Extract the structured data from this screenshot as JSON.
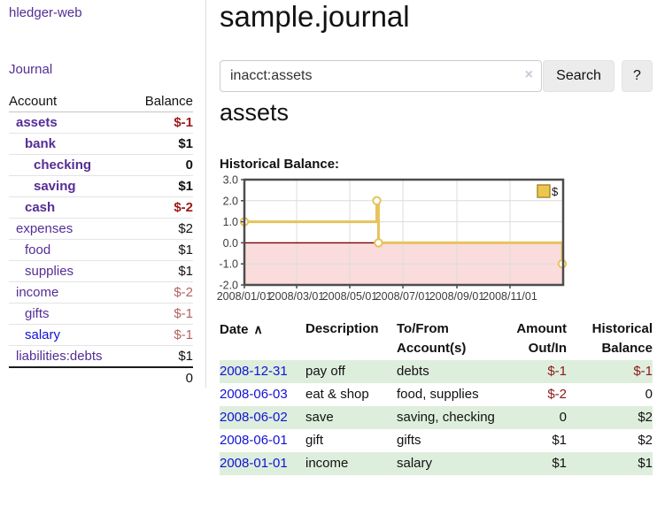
{
  "colors": {
    "link-purple": "#542d96",
    "link-blue": "#1113d2",
    "neg-dark": "#9d1717",
    "neg-muted": "#b4625f",
    "neg-table": "#8e1717",
    "row-green": "#deeedd",
    "chart-gold": "#e7c35c",
    "legend-gold": "#ecc74e",
    "legend-border": "#ab8b2d",
    "zero-line": "#7a0000",
    "chart-pink": "#fadcdc",
    "grid": "#dcdcdc",
    "chart-border": "#4d4d4d",
    "btn-bg": "#ececec",
    "clear-x": "#cdc5de",
    "axis-text": "#3c3c3c"
  },
  "sidebar": {
    "brand": "hledger-web",
    "nav": {
      "journal": "Journal"
    },
    "accounts": {
      "header": {
        "account": "Account",
        "balance": "Balance"
      },
      "rows": [
        {
          "name": "assets",
          "balance": "$-1",
          "indent": 1,
          "bold": true,
          "name_color": "purple",
          "balance_color": "darkred"
        },
        {
          "name": "bank",
          "balance": "$1",
          "indent": 2,
          "bold": true,
          "name_color": "purple",
          "balance_color": "black"
        },
        {
          "name": "checking",
          "balance": "0",
          "indent": 3,
          "bold": true,
          "name_color": "purple",
          "balance_color": "black"
        },
        {
          "name": "saving",
          "balance": "$1",
          "indent": 3,
          "bold": true,
          "name_color": "purple",
          "balance_color": "black"
        },
        {
          "name": "cash",
          "balance": "$-2",
          "indent": 2,
          "bold": true,
          "name_color": "purple",
          "balance_color": "darkred"
        },
        {
          "name": "expenses",
          "balance": "$2",
          "indent": 1,
          "bold": false,
          "name_color": "purple",
          "balance_color": "black"
        },
        {
          "name": "food",
          "balance": "$1",
          "indent": 2,
          "bold": false,
          "name_color": "purple",
          "balance_color": "black"
        },
        {
          "name": "supplies",
          "balance": "$1",
          "indent": 2,
          "bold": false,
          "name_color": "purple",
          "balance_color": "black"
        },
        {
          "name": "income",
          "balance": "$-2",
          "indent": 1,
          "bold": false,
          "name_color": "purple",
          "balance_color": "muted"
        },
        {
          "name": "gifts",
          "balance": "$-1",
          "indent": 2,
          "bold": false,
          "name_color": "purple",
          "balance_color": "muted"
        },
        {
          "name": "salary",
          "balance": "$-1",
          "indent": 2,
          "bold": false,
          "name_color": "blue",
          "balance_color": "muted"
        },
        {
          "name": "liabilities:debts",
          "balance": "$1",
          "indent": 1,
          "bold": false,
          "name_color": "purple",
          "balance_color": "black"
        }
      ],
      "total": "0"
    }
  },
  "main": {
    "title": "sample.journal",
    "search": {
      "value": "inacct:assets",
      "clear_icon": "×",
      "button": "Search",
      "help_button": "?"
    },
    "account_heading": "assets",
    "chart_label": "Historical Balance:"
  },
  "chart_data": {
    "type": "line",
    "title": "Historical Balance",
    "step": true,
    "legend": [
      {
        "label": "$"
      }
    ],
    "legend_position": "top-right",
    "grid": true,
    "negative_region_shaded": true,
    "xlim_days": [
      0,
      366
    ],
    "ylim": [
      -2,
      3
    ],
    "y_ticks": [
      {
        "label": "3.0",
        "value": 3
      },
      {
        "label": "2.0",
        "value": 2
      },
      {
        "label": "1.0",
        "value": 1
      },
      {
        "label": "0.0",
        "value": 0
      },
      {
        "label": "-1.0",
        "value": -1
      },
      {
        "label": "-2.0",
        "value": -2
      }
    ],
    "x_ticks": [
      {
        "label": "2008/01/01",
        "day": 0
      },
      {
        "label": "2008/03/01",
        "day": 60
      },
      {
        "label": "2008/05/01",
        "day": 121
      },
      {
        "label": "2008/07/01",
        "day": 182
      },
      {
        "label": "2008/09/01",
        "day": 244
      },
      {
        "label": "2008/11/01",
        "day": 305
      }
    ],
    "series": [
      {
        "name": "$",
        "points": [
          {
            "date": "2008-01-01",
            "day": 0,
            "value": 1
          },
          {
            "date": "2008-06-01",
            "day": 152,
            "value": 2
          },
          {
            "date": "2008-06-03",
            "day": 154,
            "value": 0
          },
          {
            "date": "2008-12-31",
            "day": 365,
            "value": -1
          }
        ]
      }
    ]
  },
  "register": {
    "headers": [
      {
        "text": "Date",
        "text2": "",
        "align": "left",
        "sorted": true
      },
      {
        "text": "Description",
        "text2": "",
        "align": "left",
        "sorted": false
      },
      {
        "text": "To/From",
        "text2": "Account(s)",
        "align": "left",
        "sorted": false
      },
      {
        "text": "Amount",
        "text2": "Out/In",
        "align": "right",
        "sorted": false
      },
      {
        "text": "Historical",
        "text2": "Balance",
        "align": "right",
        "sorted": false
      }
    ],
    "sort_icon": "∧",
    "rows": [
      {
        "date": "2008-12-31",
        "description": "pay off",
        "accounts": "debts",
        "amount": "$-1",
        "balance": "$-1"
      },
      {
        "date": "2008-06-03",
        "description": "eat & shop",
        "accounts": "food, supplies",
        "amount": "$-2",
        "balance": "0"
      },
      {
        "date": "2008-06-02",
        "description": "save",
        "accounts": "saving, checking",
        "amount": "0",
        "balance": "$2"
      },
      {
        "date": "2008-06-01",
        "description": "gift",
        "accounts": "gifts",
        "amount": "$1",
        "balance": "$2"
      },
      {
        "date": "2008-01-01",
        "description": "income",
        "accounts": "salary",
        "amount": "$1",
        "balance": "$1"
      }
    ]
  }
}
